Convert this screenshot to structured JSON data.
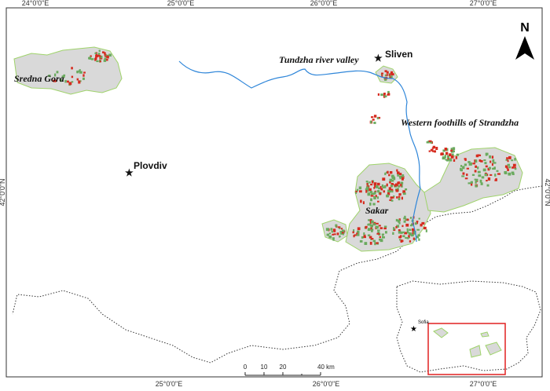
{
  "frame": {
    "top_labels": [
      "24°0'0\"E",
      "25°0'0\"E",
      "26°0'0\"E",
      "27°0'0\"E"
    ],
    "bottom_labels": [
      "25°0'0\"E",
      "26°0'0\"E",
      "27°0'0\"E"
    ],
    "left_label": "42°0'0\"N",
    "right_label": "42°0'0\"N"
  },
  "regions": [
    "Sredna Gora",
    "Tundzha river valley",
    "Western foothills of Strandzha",
    "Sakar"
  ],
  "cities": [
    "Sliven",
    "Plovdiv"
  ],
  "north_arrow": "N",
  "scale_bar": [
    "0",
    "10",
    "20",
    "40 km"
  ],
  "inset": {
    "city": "Sofia"
  }
}
